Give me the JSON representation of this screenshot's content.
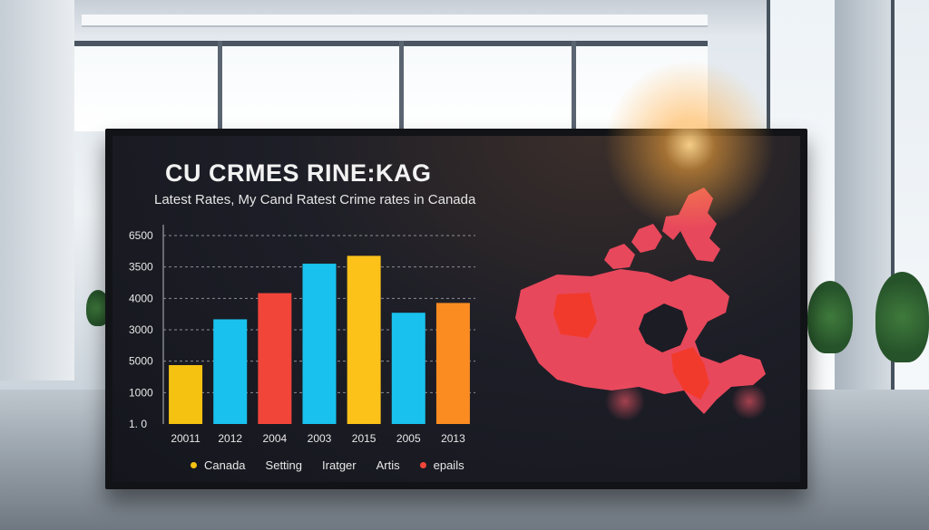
{
  "chart_data": {
    "type": "bar",
    "title": "CU CRMES RINE:KAG",
    "subtitle": "Latest Rates, My Cand Ratest Crime rates in Canada",
    "categories": [
      "20011",
      "2012",
      "2004",
      "2003",
      "2015",
      "2005",
      "2013"
    ],
    "values": [
      900,
      1600,
      2000,
      2450,
      2570,
      1700,
      1850
    ],
    "colors": [
      "#f5c211",
      "#19c2ee",
      "#f2453a",
      "#19c2ee",
      "#fcc21a",
      "#19c2ee",
      "#fb8c22"
    ],
    "y_tick_labels": [
      "6500",
      "3500",
      "4000",
      "3000",
      "5000",
      "1000",
      "1. 0"
    ],
    "ylim": [
      0,
      2880
    ],
    "grid": true,
    "legend_position": "bottom",
    "legend": [
      {
        "label": "Canada",
        "color": "#f5c211"
      },
      {
        "label": "Setting",
        "color": ""
      },
      {
        "label": "Iratger",
        "color": ""
      },
      {
        "label": "Artis",
        "color": ""
      },
      {
        "label": "epails",
        "color": "#f2453a"
      }
    ]
  },
  "map": {
    "region": "Canada",
    "fill_color": "#e8485c",
    "highlight_color": "#f23a2c"
  },
  "colors": {
    "screen_bg": "#1b1c24",
    "text": "#f2f2f2",
    "grid": "#8b8d96"
  }
}
